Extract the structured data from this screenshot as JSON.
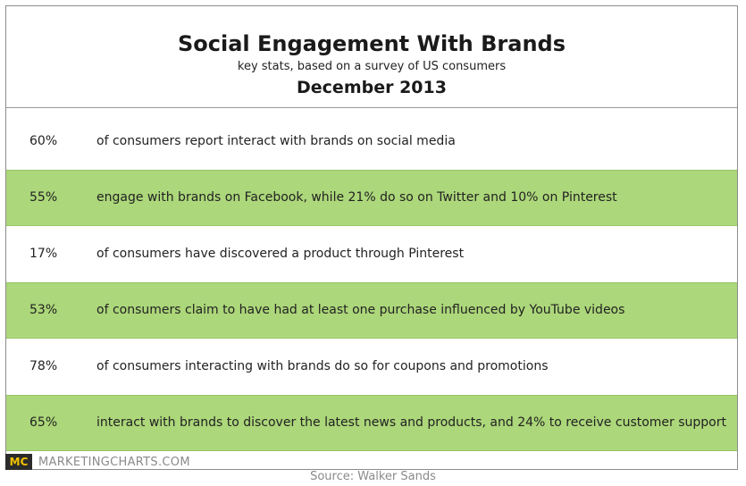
{
  "chart_data": {
    "type": "table",
    "title": "Social Engagement With Brands",
    "subtitle": "key stats, based on a survey of US consumers",
    "date": "December 2013",
    "rows": [
      {
        "stat": "60%",
        "text": "of consumers report interact with brands on social media"
      },
      {
        "stat": "55%",
        "text": "engage with brands on Facebook, while 21% do so on Twitter and 10% on Pinterest"
      },
      {
        "stat": "17%",
        "text": "of consumers have discovered a product through Pinterest"
      },
      {
        "stat": "53%",
        "text": "of consumers claim to have had at least one purchase influenced by YouTube videos"
      },
      {
        "stat": "78%",
        "text": "of consumers interacting with brands do so for coupons and promotions"
      },
      {
        "stat": "65%",
        "text": "interact with brands to discover the latest news and products, and 24% to receive customer support"
      }
    ],
    "colors": {
      "alt_row": "#acd77a",
      "border": "#8c8c8c"
    }
  },
  "footer": {
    "logo_text": "MC",
    "brand": "MARKETINGCHARTS.COM",
    "source": "Source: Walker Sands"
  }
}
